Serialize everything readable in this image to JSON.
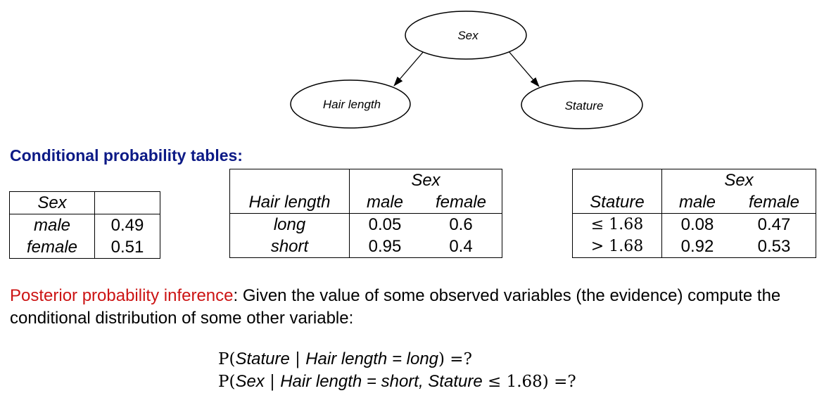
{
  "network": {
    "nodes": [
      {
        "id": "sex",
        "label": "Sex"
      },
      {
        "id": "hair",
        "label": "Hair length"
      },
      {
        "id": "stature",
        "label": "Stature"
      }
    ],
    "edges": [
      {
        "from": "sex",
        "to": "hair"
      },
      {
        "from": "sex",
        "to": "stature"
      }
    ]
  },
  "section_title": "Conditional probability tables:",
  "tables": {
    "sex": {
      "header": "Sex",
      "rows": [
        {
          "label": "male",
          "value": "0.49"
        },
        {
          "label": "female",
          "value": "0.51"
        }
      ]
    },
    "hair": {
      "group_header": "Sex",
      "var_header": "Hair length",
      "col_headers": [
        "male",
        "female"
      ],
      "rows": [
        {
          "label": "long",
          "values": [
            "0.05",
            "0.6"
          ]
        },
        {
          "label": "short",
          "values": [
            "0.95",
            "0.4"
          ]
        }
      ]
    },
    "stature": {
      "group_header": "Sex",
      "var_header": "Stature",
      "col_headers": [
        "male",
        "female"
      ],
      "rows": [
        {
          "label": "≤ 1.68",
          "values": [
            "0.08",
            "0.47"
          ]
        },
        {
          "label": "> 1.68",
          "values": [
            "0.92",
            "0.53"
          ]
        }
      ]
    }
  },
  "posterior": {
    "highlight": "Posterior probability inference",
    "text": ": Given the value of some observed variables (the evidence) compute the conditional distribution of some other variable:"
  },
  "queries": {
    "q1": {
      "p_open": "P(",
      "target": "Stature",
      "bar": " | ",
      "evidence": "Hair length = long",
      "close": ") =?"
    },
    "q2": {
      "p_open": "P(",
      "target": "Sex",
      "bar": " | ",
      "evidence": "Hair length = short, Stature",
      "relation": " ≤ 1.68",
      "close": ") =?"
    }
  }
}
